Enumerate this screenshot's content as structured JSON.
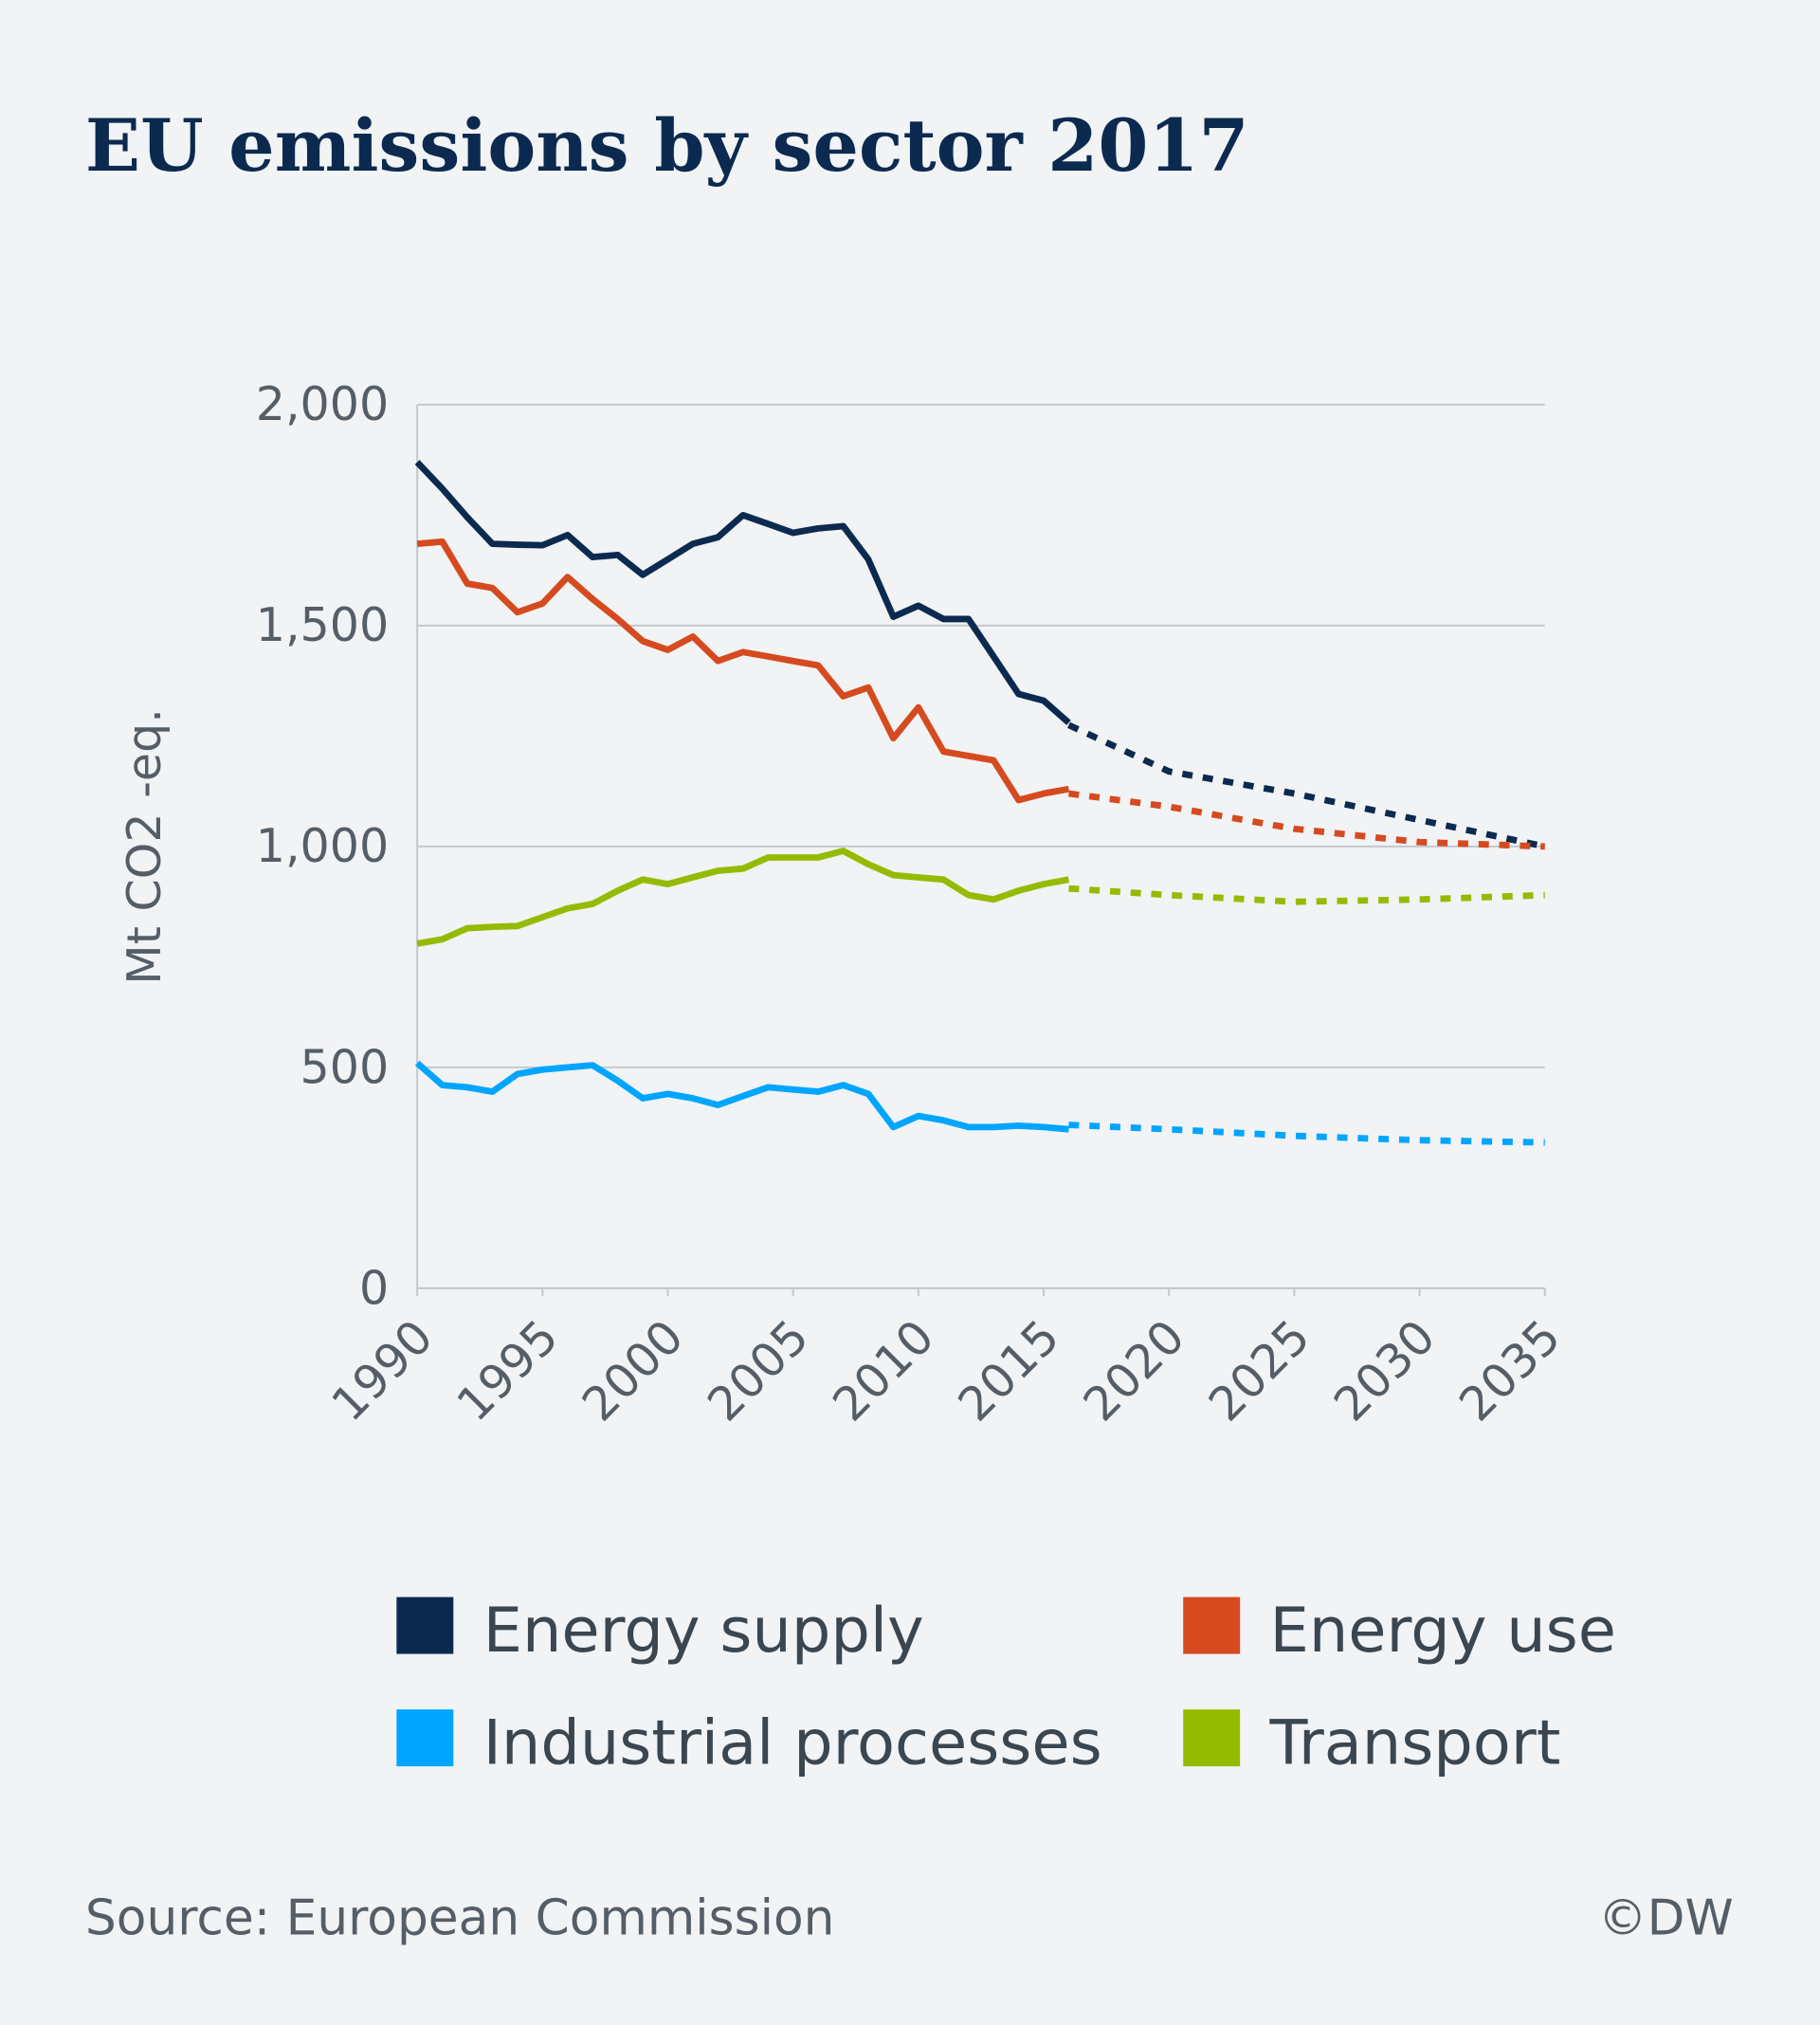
{
  "chart_data": {
    "type": "line",
    "title": "EU emissions by sector 2017",
    "y_label": "Mt CO2 -eq.",
    "source": "Source: European Commission",
    "credit": "©DW",
    "x": [
      1990,
      1991,
      1992,
      1993,
      1994,
      1995,
      1996,
      1997,
      1998,
      1999,
      2000,
      2001,
      2002,
      2003,
      2004,
      2005,
      2006,
      2007,
      2008,
      2009,
      2010,
      2011,
      2012,
      2013,
      2014,
      2015,
      2016,
      2020,
      2025,
      2030,
      2035
    ],
    "xlim": [
      1990,
      2035
    ],
    "xticks": [
      1990,
      1995,
      2000,
      2005,
      2010,
      2015,
      2020,
      2025,
      2030,
      2035
    ],
    "ylim": [
      0,
      2000
    ],
    "yticks": [
      0,
      500,
      {
        "value": 1000,
        "label": "1,000"
      },
      {
        "value": 1500,
        "label": "1,500"
      },
      {
        "value": 2000,
        "label": "2,000"
      }
    ],
    "grid": true,
    "series": [
      {
        "name": "Energy supply",
        "color": "#0c2a4f",
        "values": [
          1870,
          1810,
          1745,
          1685,
          1683,
          1682,
          1705,
          1655,
          1660,
          1615,
          1650,
          1685,
          1700,
          1750,
          1730,
          1710,
          1720,
          1725,
          1650,
          1520,
          1545,
          1515,
          1515,
          1430,
          1345,
          1330,
          1280,
          null,
          null,
          null,
          null
        ],
        "projection": [
          null,
          null,
          null,
          null,
          null,
          null,
          null,
          null,
          null,
          null,
          null,
          null,
          null,
          null,
          null,
          null,
          null,
          null,
          null,
          null,
          null,
          null,
          null,
          null,
          null,
          null,
          1275,
          1170,
          1120,
          1060,
          1000
        ]
      },
      {
        "name": "Energy use",
        "color": "#d64a1f",
        "values": [
          1685,
          1690,
          1595,
          1585,
          1530,
          1550,
          1610,
          1560,
          1515,
          1465,
          1445,
          1475,
          1420,
          1440,
          1430,
          1420,
          1410,
          1340,
          1360,
          1245,
          1315,
          1215,
          1205,
          1195,
          1105,
          1120,
          1130,
          null,
          null,
          null,
          null
        ],
        "projection": [
          null,
          null,
          null,
          null,
          null,
          null,
          null,
          null,
          null,
          null,
          null,
          null,
          null,
          null,
          null,
          null,
          null,
          null,
          null,
          null,
          null,
          null,
          null,
          null,
          null,
          null,
          1120,
          1090,
          1040,
          1010,
          1000
        ]
      },
      {
        "name": "Industrial processes",
        "color": "#00a5ff",
        "values": [
          510,
          460,
          455,
          445,
          485,
          495,
          500,
          505,
          470,
          430,
          440,
          430,
          415,
          435,
          455,
          450,
          445,
          460,
          440,
          365,
          390,
          380,
          365,
          365,
          368,
          365,
          360,
          null,
          null,
          null,
          null
        ],
        "projection": [
          null,
          null,
          null,
          null,
          null,
          null,
          null,
          null,
          null,
          null,
          null,
          null,
          null,
          null,
          null,
          null,
          null,
          null,
          null,
          null,
          null,
          null,
          null,
          null,
          null,
          null,
          370,
          360,
          345,
          335,
          330
        ]
      },
      {
        "name": "Transport",
        "color": "#95bb00",
        "values": [
          780,
          790,
          815,
          818,
          820,
          840,
          860,
          870,
          900,
          925,
          915,
          930,
          945,
          950,
          975,
          975,
          975,
          990,
          960,
          935,
          930,
          925,
          890,
          880,
          900,
          915,
          925,
          null,
          null,
          null,
          null
        ],
        "projection": [
          null,
          null,
          null,
          null,
          null,
          null,
          null,
          null,
          null,
          null,
          null,
          null,
          null,
          null,
          null,
          null,
          null,
          null,
          null,
          null,
          null,
          null,
          null,
          null,
          null,
          null,
          905,
          890,
          875,
          880,
          890
        ]
      }
    ]
  }
}
